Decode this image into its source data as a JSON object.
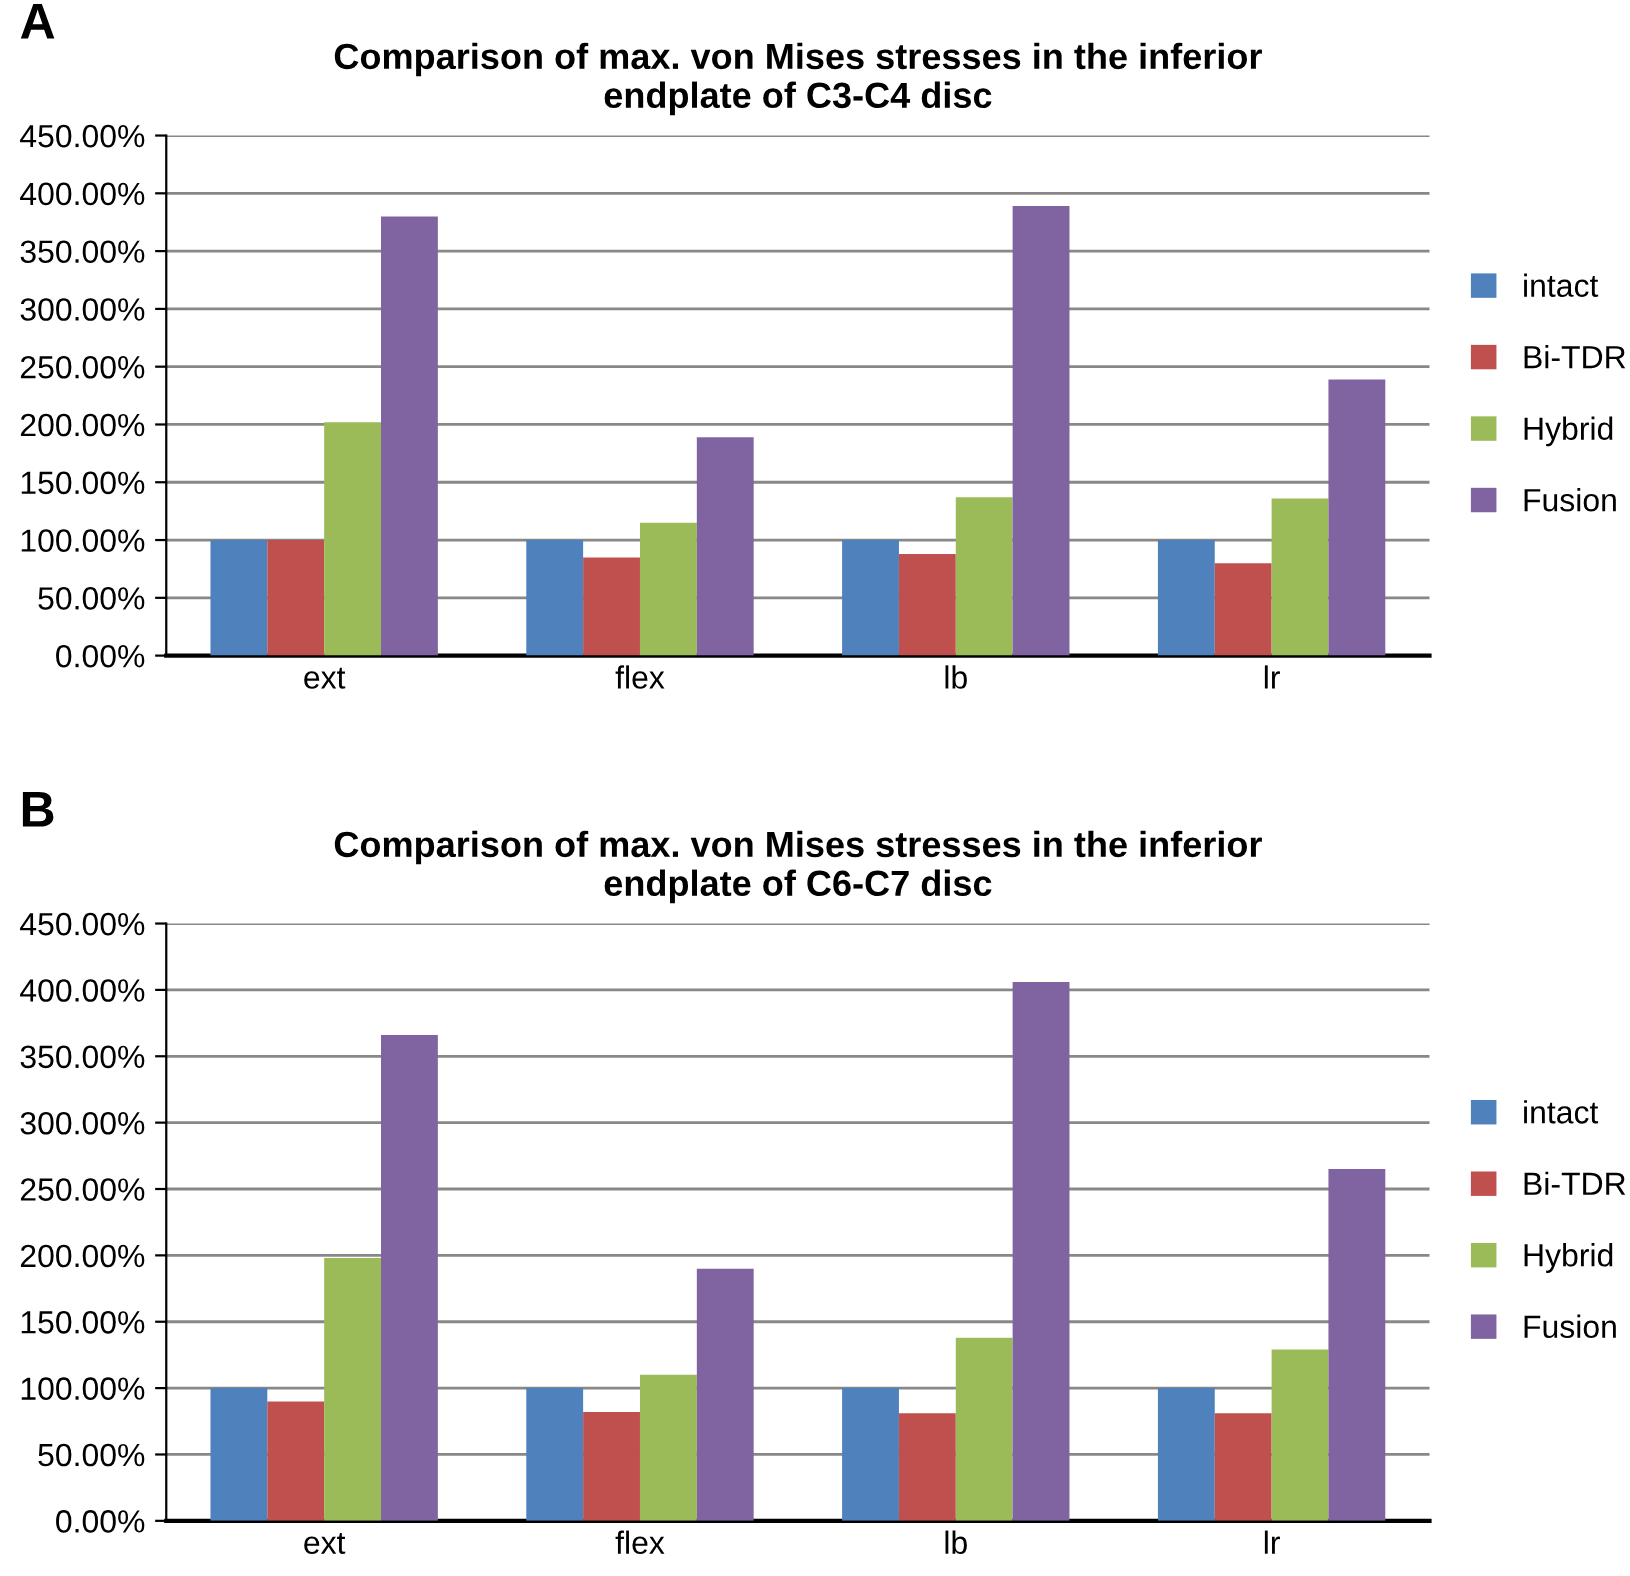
{
  "chart_data": [
    {
      "type": "bar",
      "title": "Comparison of max. von Mises stresses in the inferior\nendplate of C3-C4 disc",
      "annotations": [
        "A"
      ],
      "categories": [
        "ext",
        "flex",
        "lb",
        "lr"
      ],
      "series": [
        {
          "name": "intact",
          "color": "#4f81bd",
          "values": [
            100,
            100,
            100,
            100
          ]
        },
        {
          "name": "Bi-TDR",
          "color": "#c0504d",
          "values": [
            100,
            85,
            88,
            80
          ]
        },
        {
          "name": "Hybrid",
          "color": "#9bbb59",
          "values": [
            202,
            115,
            137,
            136
          ]
        },
        {
          "name": "Fusion",
          "color": "#8064a2",
          "values": [
            380,
            189,
            389,
            239
          ]
        }
      ],
      "ylim": [
        0,
        450
      ],
      "yticks": [
        {
          "value": 0,
          "label": "0.00%"
        },
        {
          "value": 50,
          "label": "50.00%"
        },
        {
          "value": 100,
          "label": "100.00%"
        },
        {
          "value": 150,
          "label": "150.00%"
        },
        {
          "value": 200,
          "label": "200.00%"
        },
        {
          "value": 250,
          "label": "250.00%"
        },
        {
          "value": 300,
          "label": "300.00%"
        },
        {
          "value": 350,
          "label": "350.00%"
        },
        {
          "value": 400,
          "label": "400.00%"
        },
        {
          "value": 450,
          "label": "450.00%"
        }
      ],
      "grid": "y",
      "legend": "right"
    },
    {
      "type": "bar",
      "title": "Comparison of max. von Mises stresses in the inferior\nendplate of C6-C7 disc",
      "annotations": [
        "B"
      ],
      "categories": [
        "ext",
        "flex",
        "lb",
        "lr"
      ],
      "series": [
        {
          "name": "intact",
          "color": "#4f81bd",
          "values": [
            100,
            100,
            100,
            100
          ]
        },
        {
          "name": "Bi-TDR",
          "color": "#c0504d",
          "values": [
            90,
            82,
            81,
            81
          ]
        },
        {
          "name": "Hybrid",
          "color": "#9bbb59",
          "values": [
            198,
            110,
            138,
            129
          ]
        },
        {
          "name": "Fusion",
          "color": "#8064a2",
          "values": [
            366,
            190,
            406,
            265
          ]
        }
      ],
      "ylim": [
        0,
        450
      ],
      "yticks": [
        {
          "value": 0,
          "label": "0.00%"
        },
        {
          "value": 50,
          "label": "50.00%"
        },
        {
          "value": 100,
          "label": "100.00%"
        },
        {
          "value": 150,
          "label": "150.00%"
        },
        {
          "value": 200,
          "label": "200.00%"
        },
        {
          "value": 250,
          "label": "250.00%"
        },
        {
          "value": 300,
          "label": "300.00%"
        },
        {
          "value": 350,
          "label": "350.00%"
        },
        {
          "value": 400,
          "label": "400.00%"
        },
        {
          "value": 450,
          "label": "450.00%"
        }
      ],
      "grid": "y",
      "legend": "right"
    }
  ]
}
